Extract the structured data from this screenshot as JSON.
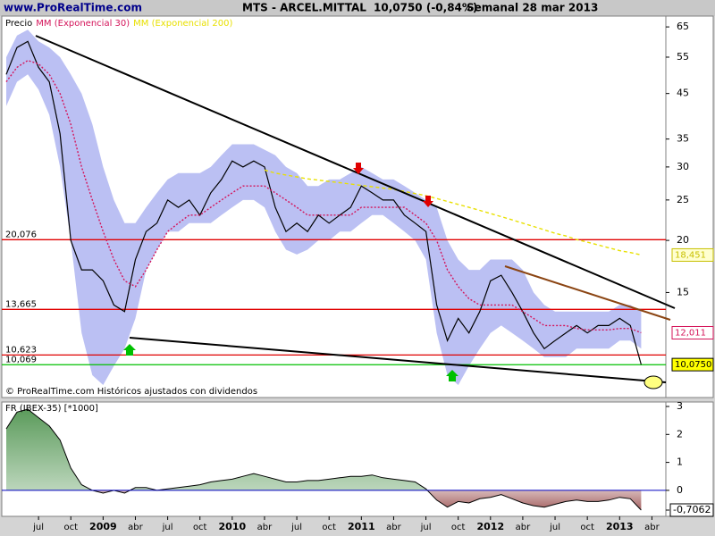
{
  "header": {
    "site": "www.ProRealTime.com",
    "title": "MTS - ARCEL.MITTAL",
    "price": "10,0750 (-0,84%)",
    "period": "Semanal  28 mar 2013"
  },
  "chart_data": [
    {
      "type": "line",
      "log_scale": true,
      "legend_position": "top-left",
      "footnote": "© ProRealTime.com  Históricos ajustados con dividendos",
      "categories": [
        null,
        null,
        null,
        "jul",
        null,
        null,
        "oct",
        null,
        null,
        "2009",
        null,
        null,
        "abr",
        null,
        null,
        "jul",
        null,
        null,
        "oct",
        null,
        null,
        "2010",
        null,
        null,
        "abr",
        null,
        null,
        "jul",
        null,
        null,
        "oct",
        null,
        null,
        "2011",
        null,
        null,
        "abr",
        null,
        null,
        "jul",
        null,
        null,
        "oct",
        null,
        null,
        "2012",
        null,
        null,
        "abr",
        null,
        null,
        "jul",
        null,
        null,
        "oct",
        null,
        null,
        "2013",
        null,
        null,
        "abr"
      ],
      "ylim": [
        8.4,
        69
      ],
      "yticks": [
        15,
        20,
        25,
        30,
        35,
        45,
        55,
        65
      ],
      "series": [
        {
          "name": "Precio",
          "color": "#000000",
          "style": "solid",
          "values": [
            50,
            58,
            60,
            52,
            48,
            36,
            20,
            17,
            17,
            16,
            14,
            13.5,
            18,
            21,
            22,
            25,
            24,
            25,
            23,
            26,
            28,
            31,
            30,
            31,
            30,
            24,
            21,
            22,
            21,
            23,
            22,
            23,
            24,
            27,
            26,
            25,
            25,
            23,
            22,
            21,
            14,
            11.5,
            13,
            12,
            13.5,
            16,
            16.5,
            15,
            13.5,
            12,
            11,
            11.5,
            12,
            12.5,
            12,
            12.5,
            12.5,
            13,
            12.5,
            10.075,
            null
          ]
        },
        {
          "name": "MM (Exponencial 30)",
          "color": "#d4145a",
          "style": "dotted",
          "values": [
            48,
            52,
            54,
            53,
            50,
            45,
            38,
            30,
            25,
            21,
            18,
            16,
            15.5,
            17,
            19,
            21,
            22,
            23,
            23,
            24,
            25,
            26,
            27,
            27,
            27,
            26,
            25,
            24,
            23,
            23,
            23,
            23,
            23,
            24,
            24,
            24,
            24,
            24,
            23,
            22,
            20,
            17,
            15.5,
            14.5,
            14,
            14,
            14,
            14,
            13.5,
            13,
            12.5,
            12.5,
            12.5,
            12.3,
            12.2,
            12.2,
            12.2,
            12.3,
            12.3,
            12.011,
            null
          ]
        },
        {
          "name": "MM (Exponencial 200)",
          "color": "#e8e000",
          "style": "dashed",
          "values": [
            null,
            null,
            null,
            null,
            null,
            null,
            null,
            null,
            null,
            null,
            null,
            null,
            null,
            null,
            null,
            null,
            null,
            null,
            null,
            null,
            null,
            null,
            null,
            null,
            29.5,
            29,
            28.7,
            28.4,
            28.1,
            27.9,
            27.7,
            27.5,
            27.3,
            27.1,
            26.9,
            26.7,
            26.5,
            26.2,
            25.9,
            25.6,
            25.2,
            24.8,
            24.4,
            24,
            23.6,
            23.2,
            22.8,
            22.4,
            22,
            21.6,
            21.2,
            20.8,
            20.5,
            20.1,
            19.8,
            19.5,
            19.2,
            18.9,
            18.7,
            18.451,
            null
          ]
        }
      ],
      "band": {
        "color": "#aab0f0",
        "upper": [
          55,
          62,
          64,
          60,
          58,
          55,
          50,
          45,
          38,
          30,
          25,
          22,
          22,
          24,
          26,
          28,
          29,
          29,
          29,
          30,
          32,
          34,
          34,
          34,
          33,
          32,
          30,
          29,
          27,
          27,
          28,
          28,
          29,
          30,
          29,
          28,
          28,
          27,
          26,
          25,
          24,
          20,
          18,
          17,
          17,
          18,
          18,
          18,
          17,
          15,
          14,
          13.5,
          13.5,
          13.5,
          13.5,
          13.5,
          13.5,
          14,
          14,
          13.5,
          null
        ],
        "lower": [
          42,
          48,
          50,
          46,
          40,
          30,
          20,
          12,
          9.5,
          9,
          10,
          11,
          13,
          17,
          19,
          21,
          21,
          22,
          22,
          22,
          23,
          24,
          25,
          25,
          24,
          21,
          19,
          18.5,
          19,
          20,
          20,
          21,
          21,
          22,
          23,
          23,
          22,
          21,
          20,
          18,
          12,
          9.5,
          9,
          10,
          11,
          12,
          12.5,
          12,
          11.5,
          11,
          10.5,
          10.5,
          10.5,
          11,
          11,
          11,
          11,
          11.5,
          11.5,
          11,
          null
        ]
      },
      "levels": [
        {
          "value": 20.076,
          "label": "20,076",
          "color": "#e00000"
        },
        {
          "value": 13.665,
          "label": "13,665",
          "color": "#e00000"
        },
        {
          "value": 10.623,
          "label": "10,623",
          "color": "#e00000"
        },
        {
          "value": 10.069,
          "label": "10,069",
          "color": "#00c000"
        }
      ],
      "markers": [
        {
          "value": 18.451,
          "label": "18,451",
          "color": "#c8c000",
          "fill": "#ffffd0"
        },
        {
          "value": 12.011,
          "label": "12,011",
          "color": "#d4145a",
          "fill": "#ffffff"
        },
        {
          "value": 10.075,
          "label": "10,0750",
          "color": "#000000",
          "fill": "#ffff00"
        }
      ]
    },
    {
      "type": "area",
      "title": "FR (IBEX-35) [*1000]",
      "ylim": [
        -0.93,
        3.16
      ],
      "yticks": [
        3,
        2,
        1,
        0,
        {
          "value": -0.7062,
          "label": "-0,7062"
        }
      ],
      "color_above": "#3f8a3f",
      "color_below": "#8a3434",
      "zero_color": "#0000c0",
      "values": [
        2.2,
        2.8,
        2.9,
        2.6,
        2.3,
        1.8,
        0.8,
        0.2,
        0,
        -0.1,
        0,
        -0.1,
        0.1,
        0.1,
        0,
        0.05,
        0.1,
        0.15,
        0.2,
        0.3,
        0.35,
        0.4,
        0.5,
        0.6,
        0.5,
        0.4,
        0.3,
        0.3,
        0.35,
        0.35,
        0.4,
        0.45,
        0.5,
        0.5,
        0.55,
        0.45,
        0.4,
        0.35,
        0.3,
        0.05,
        -0.35,
        -0.6,
        -0.4,
        -0.45,
        -0.3,
        -0.25,
        -0.15,
        -0.3,
        -0.45,
        -0.55,
        -0.6,
        -0.5,
        -0.4,
        -0.35,
        -0.4,
        -0.4,
        -0.35,
        -0.25,
        -0.3,
        -0.7062,
        null
      ]
    }
  ]
}
